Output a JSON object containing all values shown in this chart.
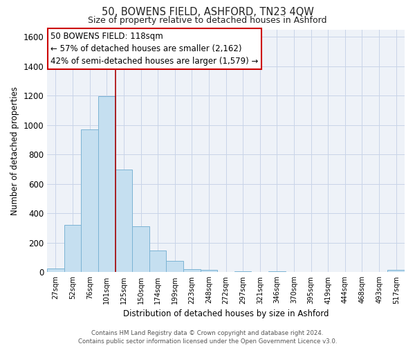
{
  "title": "50, BOWENS FIELD, ASHFORD, TN23 4QW",
  "subtitle": "Size of property relative to detached houses in Ashford",
  "xlabel": "Distribution of detached houses by size in Ashford",
  "ylabel": "Number of detached properties",
  "bar_color": "#c5dff0",
  "bar_edge_color": "#7bb3d4",
  "vline_color": "#aa0000",
  "categories": [
    "27sqm",
    "52sqm",
    "76sqm",
    "101sqm",
    "125sqm",
    "150sqm",
    "174sqm",
    "199sqm",
    "223sqm",
    "248sqm",
    "272sqm",
    "297sqm",
    "321sqm",
    "346sqm",
    "370sqm",
    "395sqm",
    "419sqm",
    "444sqm",
    "468sqm",
    "493sqm",
    "517sqm"
  ],
  "values": [
    25,
    320,
    970,
    1195,
    700,
    310,
    150,
    75,
    20,
    15,
    0,
    5,
    0,
    5,
    0,
    0,
    0,
    0,
    0,
    0,
    15
  ],
  "vline_position": 3.5,
  "ylim": [
    0,
    1650
  ],
  "yticks": [
    0,
    200,
    400,
    600,
    800,
    1000,
    1200,
    1400,
    1600
  ],
  "annotation_title": "50 BOWENS FIELD: 118sqm",
  "annotation_line1": "← 57% of detached houses are smaller (2,162)",
  "annotation_line2": "42% of semi-detached houses are larger (1,579) →",
  "footer1": "Contains HM Land Registry data © Crown copyright and database right 2024.",
  "footer2": "Contains public sector information licensed under the Open Government Licence v3.0.",
  "bg_color": "#ffffff",
  "grid_color": "#c8d4e8",
  "plot_bg_color": "#eef2f8"
}
